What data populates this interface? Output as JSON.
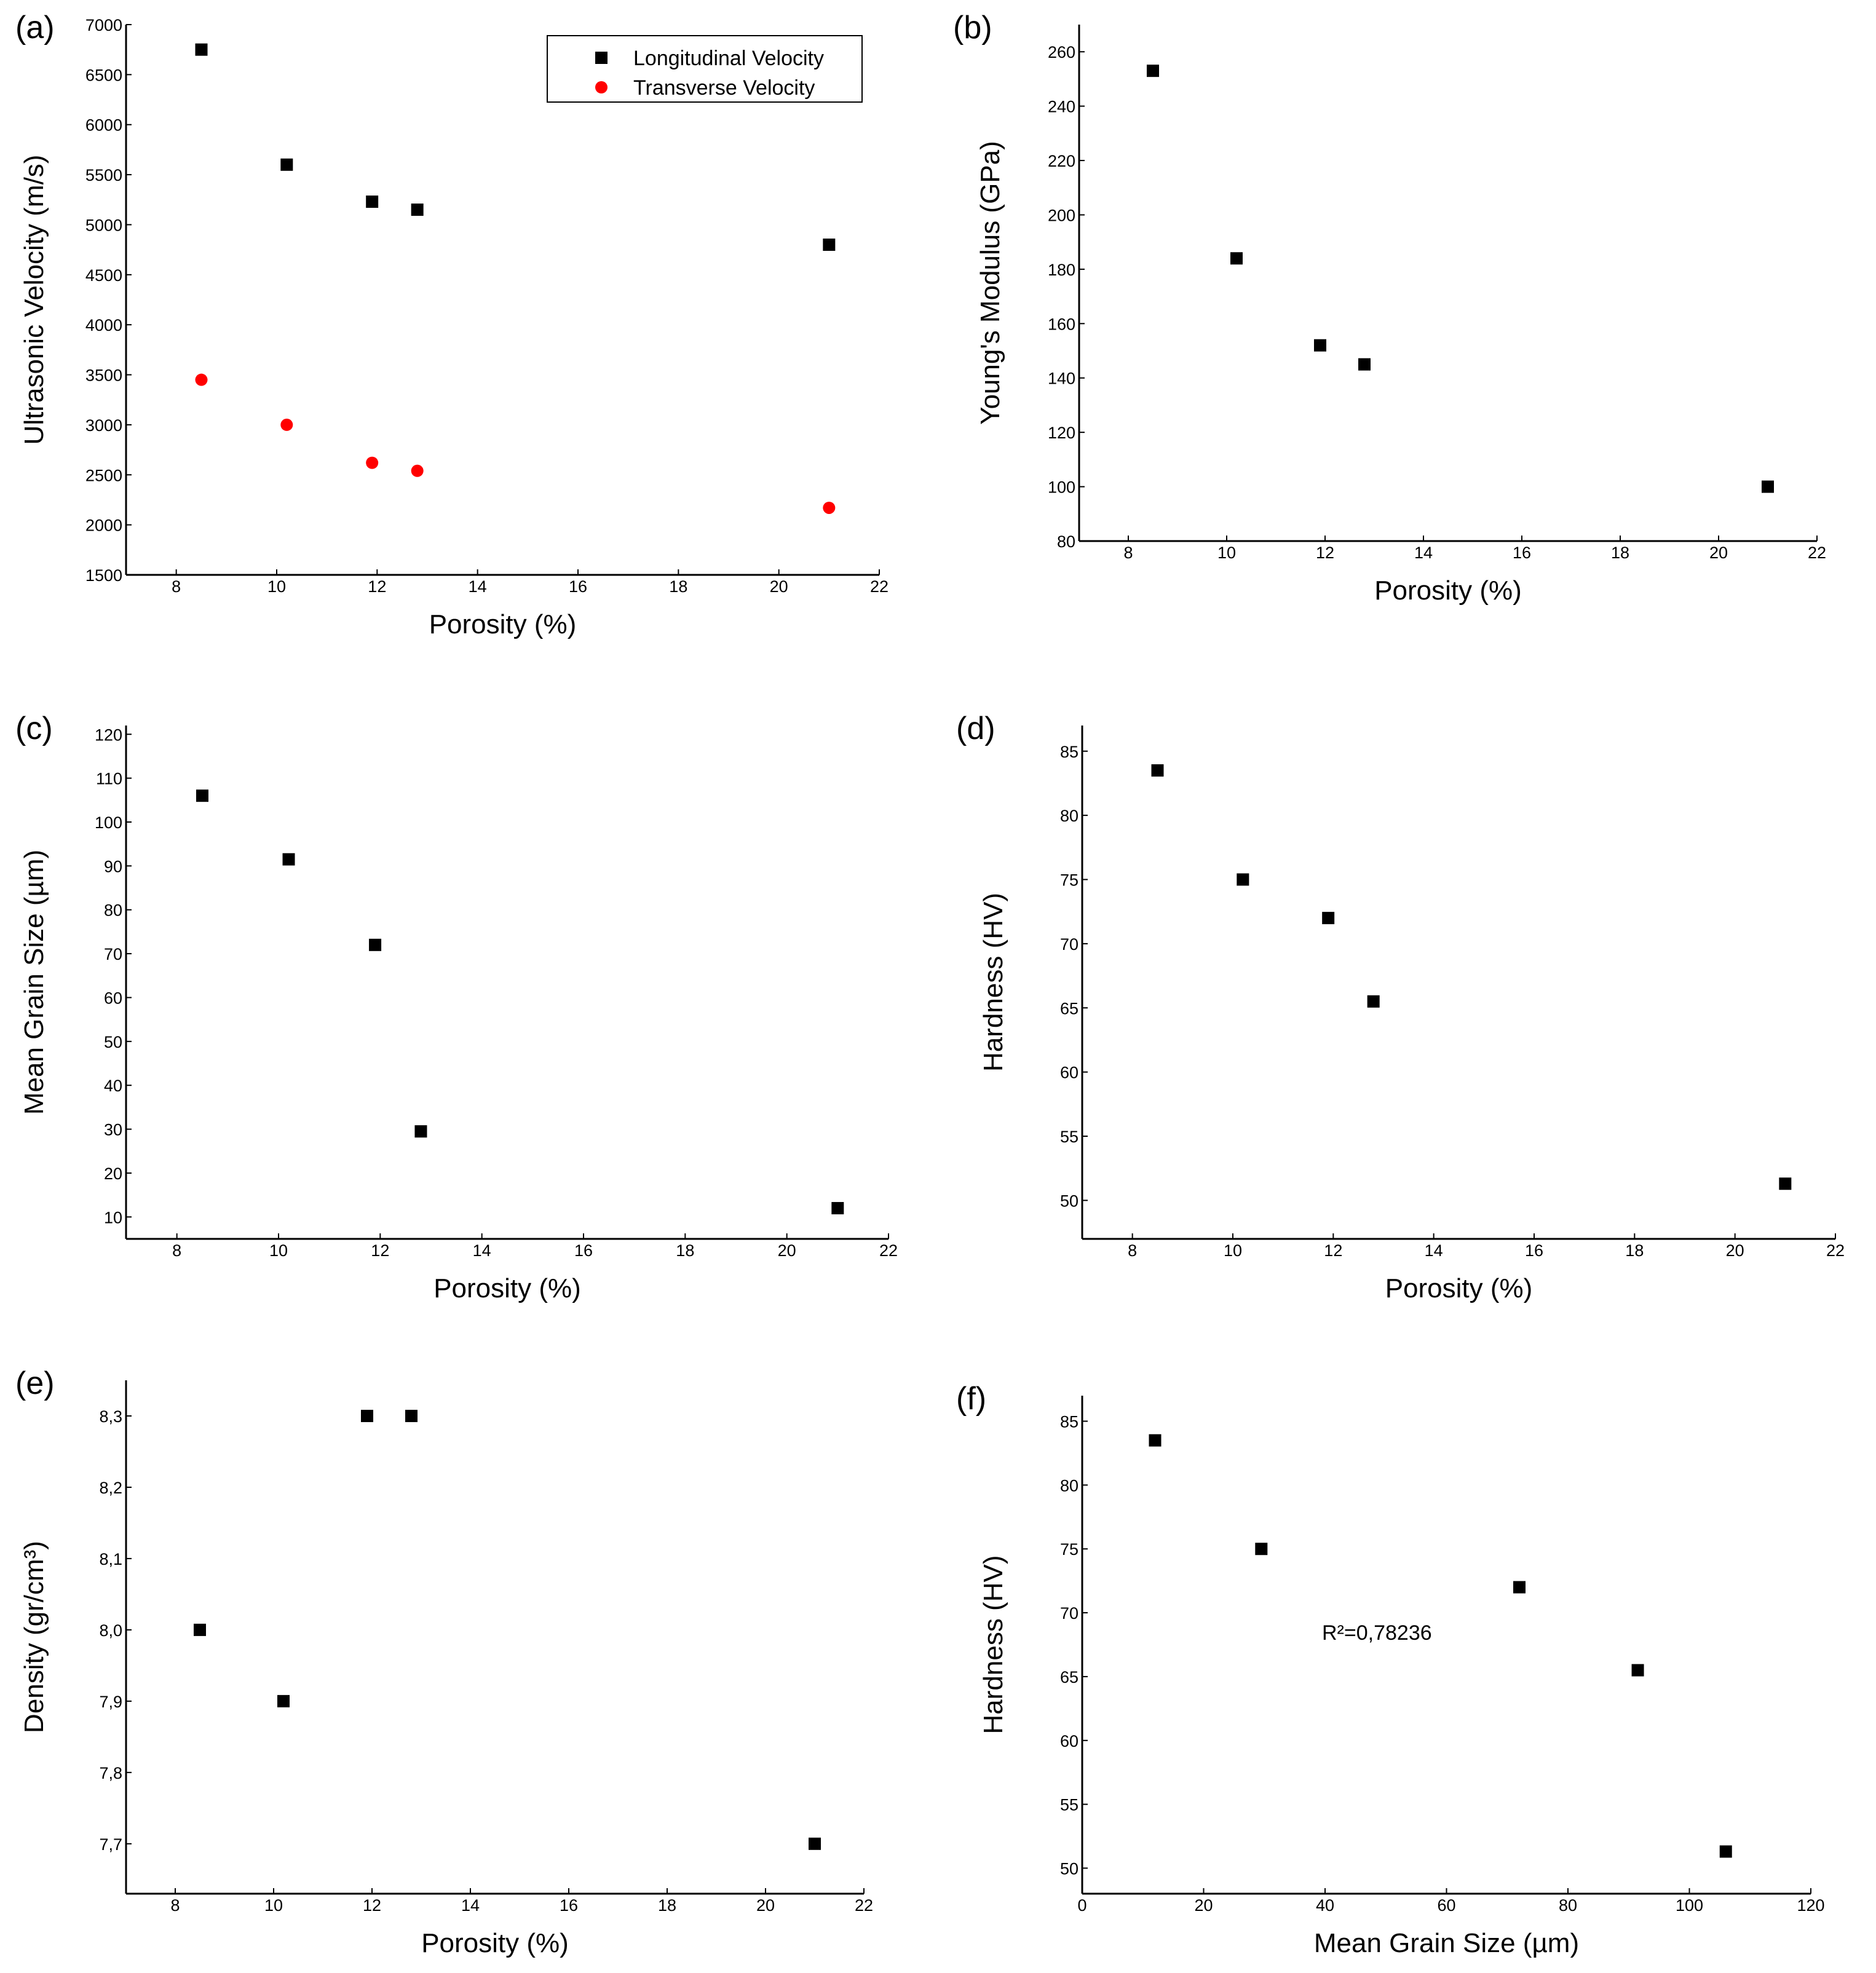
{
  "chart_data": [
    {
      "tag": "(a)",
      "type": "scatter",
      "xlabel": "Porosity (%)",
      "ylabel": "Ultrasonic Velocity (m/s)",
      "xlim": [
        7,
        22
      ],
      "ylim": [
        1500,
        7000
      ],
      "xticks": [
        8,
        10,
        12,
        14,
        16,
        18,
        20,
        22
      ],
      "yticks": [
        1500,
        2000,
        2500,
        3000,
        3500,
        4000,
        4500,
        5000,
        5500,
        6000,
        6500,
        7000
      ],
      "legend": {
        "position": "top-right"
      },
      "series": [
        {
          "name": "Longitudinal Velocity",
          "marker": "square",
          "color": "#000000",
          "line_color": "#000000",
          "x": [
            8.5,
            10.2,
            11.9,
            12.8,
            21.0
          ],
          "y": [
            6750,
            5600,
            5230,
            5150,
            4800
          ],
          "fit_x_range": [
            8.5,
            21.0
          ]
        },
        {
          "name": "Transverse Velocity",
          "marker": "circle",
          "color": "#ff0000",
          "line_color": "#ff0000",
          "x": [
            8.5,
            10.2,
            11.9,
            12.8,
            21.0
          ],
          "y": [
            3450,
            3000,
            2620,
            2540,
            2170
          ],
          "fit_x_range": [
            8.5,
            21.0
          ]
        }
      ]
    },
    {
      "tag": "(b)",
      "type": "scatter",
      "xlabel": "Porosity (%)",
      "ylabel": "Young's Modulus (GPa)",
      "xlim": [
        7,
        22
      ],
      "ylim": [
        80,
        270
      ],
      "xticks": [
        8,
        10,
        12,
        14,
        16,
        18,
        20,
        22
      ],
      "yticks": [
        80,
        100,
        120,
        140,
        160,
        180,
        200,
        220,
        240,
        260
      ],
      "series": [
        {
          "marker": "square",
          "color": "#000000",
          "line_color": "#ff0000",
          "x": [
            8.5,
            10.2,
            11.9,
            12.8,
            21.0
          ],
          "y": [
            253,
            184,
            152,
            145,
            100
          ],
          "fit_x_range": [
            8.5,
            21.0
          ]
        }
      ]
    },
    {
      "tag": "(c)",
      "type": "scatter",
      "xlabel": "Porosity (%)",
      "ylabel": "Mean Grain Size (µm)",
      "xlim": [
        7,
        22
      ],
      "ylim": [
        5,
        122
      ],
      "xticks": [
        8,
        10,
        12,
        14,
        16,
        18,
        20,
        22
      ],
      "yticks": [
        10,
        20,
        30,
        40,
        50,
        60,
        70,
        80,
        90,
        100,
        110,
        120
      ],
      "series": [
        {
          "marker": "square",
          "color": "#000000",
          "line_color": "#ff0000",
          "x": [
            8.5,
            10.2,
            11.9,
            12.8,
            21.0
          ],
          "y": [
            106,
            91.5,
            72,
            29.5,
            12
          ],
          "fit_x_range": [
            8.5,
            21.0
          ]
        }
      ]
    },
    {
      "tag": "(d)",
      "type": "scatter",
      "xlabel": "Porosity (%)",
      "ylabel": "Hardness (HV)",
      "xlim": [
        7,
        22
      ],
      "ylim": [
        47,
        87
      ],
      "xticks": [
        8,
        10,
        12,
        14,
        16,
        18,
        20,
        22
      ],
      "yticks": [
        50,
        55,
        60,
        65,
        70,
        75,
        80,
        85
      ],
      "series": [
        {
          "marker": "square",
          "color": "#000000",
          "line_color": "#ff0000",
          "x": [
            8.5,
            10.2,
            11.9,
            12.8,
            21.0
          ],
          "y": [
            83.5,
            75,
            72,
            65.5,
            51.3
          ],
          "fit_x_range": [
            8.5,
            21.0
          ]
        }
      ]
    },
    {
      "tag": "(e)",
      "type": "scatter",
      "xlabel": "Porosity (%)",
      "ylabel": "Density (gr/cm³)",
      "xlim": [
        7,
        22
      ],
      "ylim": [
        7.63,
        8.35
      ],
      "xticks": [
        8,
        10,
        12,
        14,
        16,
        18,
        20,
        22
      ],
      "yticks": [
        7.7,
        7.8,
        7.9,
        8.0,
        8.1,
        8.2,
        8.3
      ],
      "yticklabels": [
        "7,7",
        "7,8",
        "7,9",
        "8,0",
        "8,1",
        "8,2",
        "8,3"
      ],
      "series": [
        {
          "marker": "square",
          "color": "#000000",
          "line_color": "#ff0000",
          "x": [
            8.5,
            10.2,
            11.9,
            12.8,
            21.0
          ],
          "y": [
            8.0,
            7.9,
            8.3,
            8.3,
            7.7
          ],
          "fit_x_range": [
            8.5,
            21.0
          ]
        }
      ]
    },
    {
      "tag": "(f)",
      "type": "scatter",
      "xlabel": "Mean Grain Size (µm)",
      "ylabel": "Hardness (HV)",
      "xlim": [
        0,
        120
      ],
      "ylim": [
        48,
        87
      ],
      "xticks": [
        0,
        20,
        40,
        60,
        80,
        100,
        120
      ],
      "yticks": [
        50,
        55,
        60,
        65,
        70,
        75,
        80,
        85
      ],
      "annotation": "R²=0,78236",
      "series": [
        {
          "marker": "square",
          "color": "#000000",
          "line_color": "#ff0000",
          "x": [
            12,
            29.5,
            72,
            91.5,
            106
          ],
          "y": [
            83.5,
            75,
            72,
            65.5,
            51.3
          ],
          "fit": "linear",
          "fit_x_range": [
            12,
            106
          ]
        }
      ]
    }
  ]
}
